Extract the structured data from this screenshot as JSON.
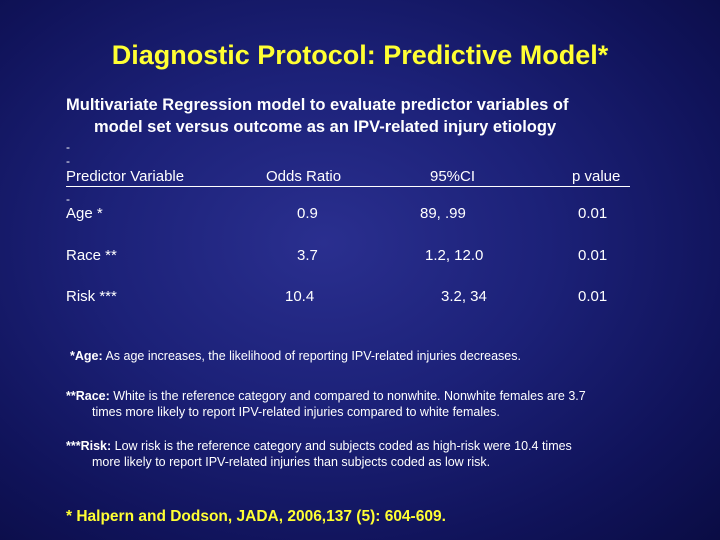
{
  "slide": {
    "title": "Diagnostic Protocol: Predictive Model*",
    "subtitle_line1": "Multivariate Regression model to evaluate predictor variables of",
    "subtitle_line2": "model set versus outcome as an IPV-related injury etiology",
    "dash": "-"
  },
  "table": {
    "headers": [
      "Predictor Variable",
      "Odds Ratio",
      "95%CI",
      "p value"
    ],
    "rows": [
      {
        "variable": "Age *",
        "odds_ratio": "0.9",
        "ci": "89,  .99",
        "p": "0.01"
      },
      {
        "variable": "Race **",
        "odds_ratio": "3.7",
        "ci": "1.2, 12.0",
        "p": "0.01"
      },
      {
        "variable": "Risk ***",
        "odds_ratio": "10.4",
        "ci": "3.2, 34",
        "p": "0.01"
      }
    ]
  },
  "notes": {
    "age_label": "*Age:",
    "age_text": " As age increases, the likelihood of reporting IPV-related injuries decreases.",
    "race_label": "**Race:",
    "race_text_1": " White is the reference category and compared to nonwhite. Nonwhite females are 3.7",
    "race_text_2": "times more likely to report IPV-related injuries compared to white females.",
    "risk_label": "***Risk:",
    "risk_text_1": " Low risk is the reference category and subjects coded as high-risk were 10.4 times",
    "risk_text_2": "more likely to report IPV-related injuries than subjects coded as low risk."
  },
  "citation": "* Halpern and Dodson, JADA, 2006,137 (5): 604-609."
}
